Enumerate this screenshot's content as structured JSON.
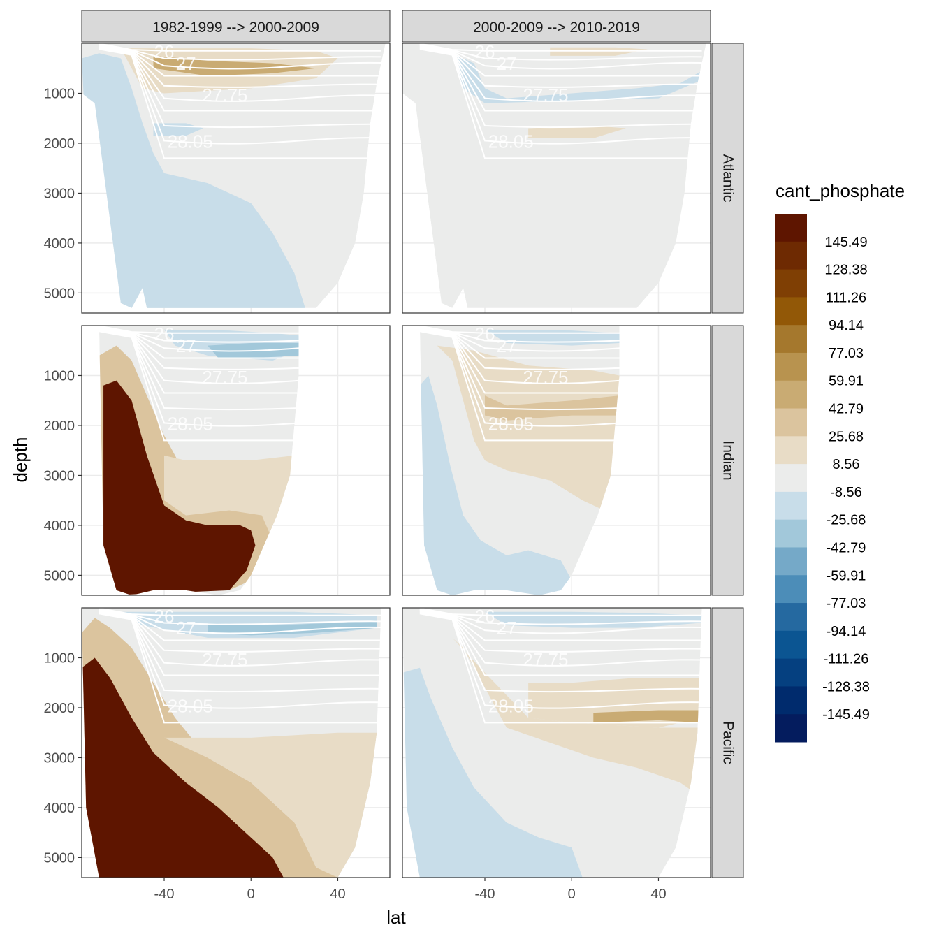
{
  "chart_data": {
    "type": "heatmap",
    "xlabel": "lat",
    "ylabel": "depth",
    "xlim": [
      -78,
      64
    ],
    "ylim": [
      5400,
      0
    ],
    "x_ticks": [
      {
        "value": -40,
        "label": "-40"
      },
      {
        "value": 0,
        "label": "0"
      },
      {
        "value": 40,
        "label": "40"
      }
    ],
    "y_ticks": [
      {
        "value": 1000,
        "label": "1000"
      },
      {
        "value": 2000,
        "label": "2000"
      },
      {
        "value": 3000,
        "label": "3000"
      },
      {
        "value": 4000,
        "label": "4000"
      },
      {
        "value": 5000,
        "label": "5000"
      }
    ],
    "columns": [
      "1982-1999 --> 2000-2009",
      "2000-2009 --> 2010-2019"
    ],
    "rows": [
      "Atlantic",
      "Indian",
      "Pacific"
    ],
    "legend": {
      "title": "cant_phosphate",
      "position": "right",
      "labels": [
        "145.49",
        "128.38",
        "111.26",
        "94.14",
        "77.03",
        "59.91",
        "42.79",
        "25.68",
        "8.56",
        "-8.56",
        "-25.68",
        "-42.79",
        "-59.91",
        "-77.03",
        "-94.14",
        "-111.26",
        "-128.38",
        "-145.49"
      ],
      "colors": [
        "#5e1500",
        "#6e2a02",
        "#7f3f04",
        "#925807",
        "#a5782d",
        "#b8934f",
        "#c9ab73",
        "#dbc49e",
        "#e8dcc6",
        "#ebeceb",
        "#c8dde9",
        "#a2c8da",
        "#75a9c8",
        "#4c8db8",
        "#2569a0",
        "#0b5592",
        "#054080",
        "#002b6d",
        "#041c5e"
      ]
    },
    "isopycnal_labels": [
      "26",
      "27",
      "27.75",
      "28.05"
    ],
    "grid": true
  }
}
